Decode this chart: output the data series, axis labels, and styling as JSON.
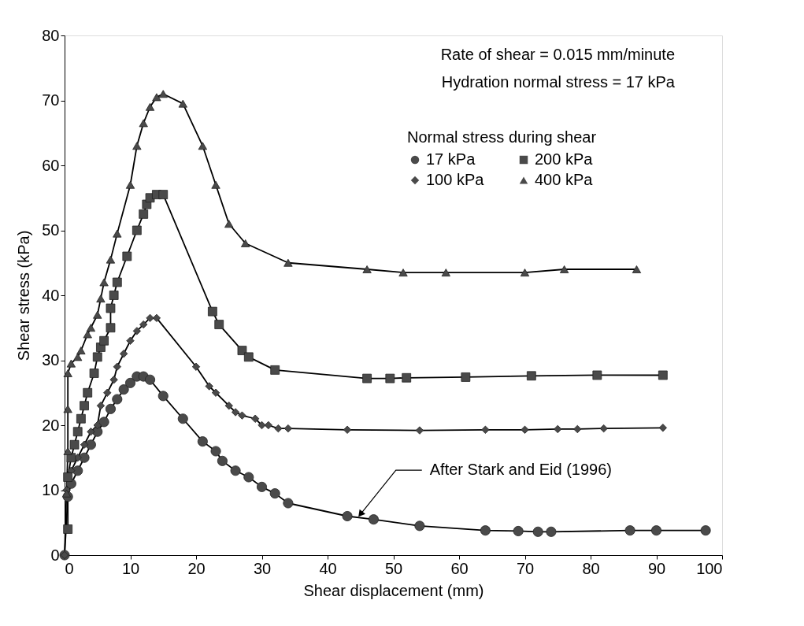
{
  "chart_data": {
    "type": "line",
    "xlabel": "Shear displacement (mm)",
    "ylabel": "Shear stress (kPa)",
    "legend_title": "Normal stress during shear",
    "legend": "top right",
    "grid": false,
    "line_style": "solid",
    "xlim": [
      0,
      100
    ],
    "ylim": [
      0,
      80
    ],
    "xticks": [
      0,
      10,
      20,
      30,
      40,
      50,
      60,
      70,
      80,
      90,
      100
    ],
    "yticks": [
      0,
      10,
      20,
      30,
      40,
      50,
      60,
      70,
      80
    ],
    "annotations": [
      "Rate of shear = 0.015 mm/minute",
      "Hydration normal stress = 17 kPa",
      {
        "text": "After Stark and Eid (1996)",
        "x": 45,
        "y": 6.3
      }
    ],
    "series": [
      {
        "name": "17 kPa",
        "color": "#4a4a4a",
        "marker": "circle",
        "x": [
          0,
          0.5,
          1,
          2,
          3,
          4,
          5,
          6,
          7,
          8,
          9,
          10,
          11,
          12,
          13,
          15,
          18,
          21,
          23,
          24,
          26,
          28,
          30,
          32,
          34,
          43,
          47,
          54,
          64,
          69,
          72,
          74,
          86,
          90,
          97.5
        ],
        "values": [
          0,
          9,
          11,
          13,
          15,
          17,
          19,
          20.5,
          22.5,
          24,
          25.5,
          26.5,
          27.5,
          27.5,
          27,
          24.5,
          21,
          17.5,
          16,
          14.5,
          13,
          12,
          10.5,
          9.5,
          8,
          6,
          5.5,
          4.5,
          3.8,
          3.7,
          3.6,
          3.6,
          3.8,
          3.8,
          3.8
        ]
      },
      {
        "name": "100 kPa",
        "color": "#4a4a4a",
        "marker": "diamond",
        "x": [
          0,
          0.3,
          1,
          2,
          3,
          4,
          5,
          5.5,
          6.5,
          7.5,
          8,
          9,
          10,
          11,
          12,
          13,
          14,
          20,
          22,
          23,
          25,
          26,
          27,
          29,
          30,
          31,
          32.5,
          34,
          43,
          54,
          64,
          70,
          75,
          78,
          82,
          91
        ],
        "values": [
          0,
          10,
          13,
          15,
          17,
          19,
          20,
          23,
          25,
          27,
          29,
          31,
          33,
          34.5,
          35.5,
          36.5,
          36.5,
          29,
          26,
          25,
          23,
          22,
          21.5,
          21,
          20,
          20,
          19.5,
          19.5,
          19.3,
          19.2,
          19.3,
          19.3,
          19.4,
          19.4,
          19.5,
          19.6
        ]
      },
      {
        "name": "200 kPa",
        "color": "#4a4a4a",
        "marker": "square",
        "x": [
          0.5,
          0.5,
          1,
          1.5,
          2,
          2.5,
          3,
          3.5,
          4.5,
          5,
          5.5,
          6,
          7,
          7,
          7.5,
          8,
          9.5,
          11,
          12,
          12.5,
          13,
          14,
          15,
          22.5,
          23.5,
          27,
          28,
          32,
          46,
          49.5,
          52,
          61,
          71,
          81,
          91
        ],
        "values": [
          4,
          12,
          15,
          17,
          19,
          21,
          23,
          25,
          28,
          30.5,
          32,
          33,
          35,
          38,
          40,
          42,
          46,
          50,
          52.5,
          54,
          55,
          55.5,
          55.5,
          37.5,
          35.5,
          31.5,
          30.5,
          28.5,
          27.2,
          27.2,
          27.3,
          27.4,
          27.6,
          27.7,
          27.7
        ]
      },
      {
        "name": "400 kPa",
        "color": "#4a4a4a",
        "marker": "triangle",
        "x": [
          0.3,
          0.5,
          0.5,
          0.5,
          1,
          2,
          2.5,
          3.5,
          4,
          5,
          5.5,
          6,
          7,
          8,
          10,
          11,
          12,
          13,
          14,
          15,
          18,
          21,
          23,
          25,
          27.5,
          34,
          46,
          51.5,
          58,
          70,
          76,
          87
        ],
        "values": [
          9.5,
          16,
          22.5,
          28,
          29.5,
          30.5,
          31.5,
          34,
          35,
          37,
          39.5,
          42,
          45.5,
          49.5,
          57,
          63,
          66.5,
          69,
          70.5,
          71,
          69.5,
          63,
          57,
          51,
          48,
          45,
          44,
          43.5,
          43.5,
          43.5,
          44,
          44
        ]
      }
    ]
  }
}
